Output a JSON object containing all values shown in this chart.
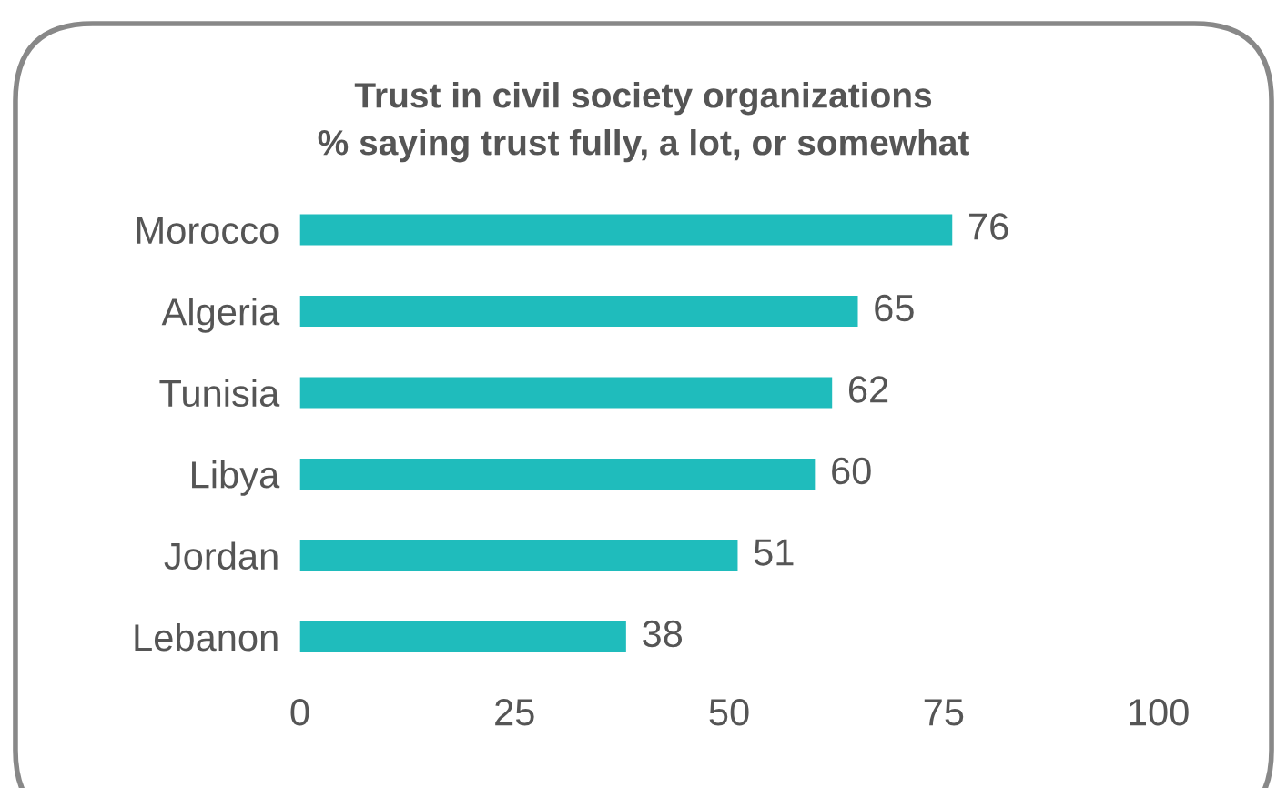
{
  "chart_data": {
    "type": "bar",
    "orientation": "horizontal",
    "title": "Trust in civil society organizations",
    "subtitle": "% saying trust fully, a lot, or somewhat",
    "categories": [
      "Morocco",
      "Algeria",
      "Tunisia",
      "Libya",
      "Jordan",
      "Lebanon"
    ],
    "values": [
      76,
      65,
      62,
      60,
      51,
      38
    ],
    "color": "#1fbcbc",
    "xlim": [
      0,
      100
    ],
    "xticks": [
      0,
      25,
      50,
      75,
      100
    ],
    "data_labels": true,
    "grid": false,
    "legend": false
  }
}
